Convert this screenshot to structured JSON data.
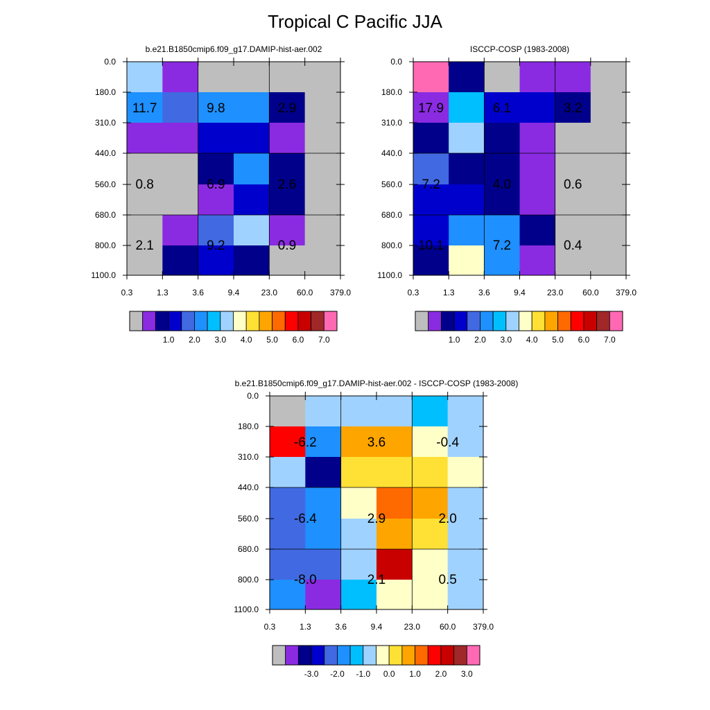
{
  "title": "Tropical C Pacific JJA",
  "colors": {
    "missing": "#BEBEBE",
    "cmap": [
      "#8A2BE2",
      "#00008B",
      "#0000CD",
      "#4169E1",
      "#1E90FF",
      "#00BFFF",
      "#A0D2FF",
      "#FFFFC8",
      "#FFE135",
      "#FFA500",
      "#FF6A00",
      "#FF0000",
      "#C80000",
      "#A02828",
      "#FF69B4"
    ]
  },
  "chart_data": [
    {
      "type": "heatmap",
      "id": "model",
      "title": "b.e21.B1850cmip6.f09_g17.DAMIP-hist-aer.002",
      "x_ticks": [
        "0.3",
        "1.3",
        "3.6",
        "9.4",
        "23.0",
        "60.0",
        "379.0"
      ],
      "y_ticks": [
        "0.0",
        "180.0",
        "310.0",
        "440.0",
        "560.0",
        "680.0",
        "800.0",
        "1100.0"
      ],
      "grid": true,
      "cells": [
        [
          "#A0D2FF",
          "#8A2BE2",
          "missing",
          "missing",
          "missing",
          "missing"
        ],
        [
          "#1E90FF",
          "#4169E1",
          "#1E90FF",
          "#1E90FF",
          "#00008B",
          "missing"
        ],
        [
          "#8A2BE2",
          "#8A2BE2",
          "#0000CD",
          "#0000CD",
          "#8A2BE2",
          "missing"
        ],
        [
          "missing",
          "missing",
          "#00008B",
          "#1E90FF",
          "#00008B",
          "missing"
        ],
        [
          "missing",
          "missing",
          "#8A2BE2",
          "#0000CD",
          "#00008B",
          "missing"
        ],
        [
          "missing",
          "#8A2BE2",
          "#4169E1",
          "#A0D2FF",
          "#8A2BE2",
          "missing"
        ],
        [
          "missing",
          "#00008B",
          "#0000CD",
          "#00008B",
          "missing",
          "missing"
        ]
      ],
      "annotations": [
        {
          "col": 0.5,
          "row": 1.5,
          "text": "11.7"
        },
        {
          "col": 2.5,
          "row": 1.5,
          "text": "9.8"
        },
        {
          "col": 4.5,
          "row": 1.5,
          "text": "2.9"
        },
        {
          "col": 0.5,
          "row": 4.0,
          "text": "0.8"
        },
        {
          "col": 2.5,
          "row": 4.0,
          "text": "6.9"
        },
        {
          "col": 4.5,
          "row": 4.0,
          "text": "2.6"
        },
        {
          "col": 0.5,
          "row": 6.0,
          "text": "2.1"
        },
        {
          "col": 2.5,
          "row": 6.0,
          "text": "9.2"
        },
        {
          "col": 4.5,
          "row": 6.0,
          "text": "0.9"
        }
      ],
      "colorbar_labels": [
        "1.0",
        "2.0",
        "3.0",
        "4.0",
        "5.0",
        "6.0",
        "7.0"
      ]
    },
    {
      "type": "heatmap",
      "id": "obs",
      "title": "ISCCP-COSP (1983-2008)",
      "x_ticks": [
        "0.3",
        "1.3",
        "3.6",
        "9.4",
        "23.0",
        "60.0",
        "379.0"
      ],
      "y_ticks": [
        "0.0",
        "180.0",
        "310.0",
        "440.0",
        "560.0",
        "680.0",
        "800.0",
        "1100.0"
      ],
      "grid": true,
      "cells": [
        [
          "#FF69B4",
          "#00008B",
          "missing",
          "#8A2BE2",
          "#8A2BE2",
          "missing"
        ],
        [
          "#8A2BE2",
          "#00BFFF",
          "#0000CD",
          "#0000CD",
          "#00008B",
          "missing"
        ],
        [
          "#00008B",
          "#A0D2FF",
          "#00008B",
          "#8A2BE2",
          "missing",
          "missing"
        ],
        [
          "#4169E1",
          "#00008B",
          "#00008B",
          "#8A2BE2",
          "missing",
          "missing"
        ],
        [
          "#0000CD",
          "#0000CD",
          "#00008B",
          "#8A2BE2",
          "missing",
          "missing"
        ],
        [
          "#0000CD",
          "#1E90FF",
          "#1E90FF",
          "#00008B",
          "missing",
          "missing"
        ],
        [
          "#00008B",
          "#FFFFC8",
          "#1E90FF",
          "#8A2BE2",
          "missing",
          "missing"
        ]
      ],
      "annotations": [
        {
          "col": 0.5,
          "row": 1.5,
          "text": "17.9"
        },
        {
          "col": 2.5,
          "row": 1.5,
          "text": "6.1"
        },
        {
          "col": 4.5,
          "row": 1.5,
          "text": "3.2"
        },
        {
          "col": 0.5,
          "row": 4.0,
          "text": "7.2"
        },
        {
          "col": 2.5,
          "row": 4.0,
          "text": "4.0"
        },
        {
          "col": 4.5,
          "row": 4.0,
          "text": "0.6"
        },
        {
          "col": 0.5,
          "row": 6.0,
          "text": "10.1"
        },
        {
          "col": 2.5,
          "row": 6.0,
          "text": "7.2"
        },
        {
          "col": 4.5,
          "row": 6.0,
          "text": "0.4"
        }
      ],
      "colorbar_labels": [
        "1.0",
        "2.0",
        "3.0",
        "4.0",
        "5.0",
        "6.0",
        "7.0"
      ]
    },
    {
      "type": "heatmap",
      "id": "diff",
      "title": "b.e21.B1850cmip6.f09_g17.DAMIP-hist-aer.002 - ISCCP-COSP (1983-2008)",
      "x_ticks": [
        "0.3",
        "1.3",
        "3.6",
        "9.4",
        "23.0",
        "60.0",
        "379.0"
      ],
      "y_ticks": [
        "0.0",
        "180.0",
        "310.0",
        "440.0",
        "560.0",
        "680.0",
        "800.0",
        "1100.0"
      ],
      "grid": true,
      "cells": [
        [
          "missing",
          "#A0D2FF",
          "#A0D2FF",
          "#A0D2FF",
          "#00BFFF",
          "#A0D2FF"
        ],
        [
          "#FF0000",
          "#1E90FF",
          "#FFA500",
          "#FFA500",
          "#FFFFC8",
          "#A0D2FF"
        ],
        [
          "#A0D2FF",
          "#00008B",
          "#FFE135",
          "#FFE135",
          "#FFE135",
          "#FFFFC8"
        ],
        [
          "#4169E1",
          "#1E90FF",
          "#FFFFC8",
          "#FF6A00",
          "#FFA500",
          "#A0D2FF"
        ],
        [
          "#4169E1",
          "#1E90FF",
          "#A0D2FF",
          "#FFA500",
          "#FFE135",
          "#A0D2FF"
        ],
        [
          "#4169E1",
          "#4169E1",
          "#A0D2FF",
          "#C80000",
          "#FFFFC8",
          "#A0D2FF"
        ],
        [
          "#1E90FF",
          "#8A2BE2",
          "#00BFFF",
          "#FFFFC8",
          "#FFFFC8",
          "#A0D2FF"
        ]
      ],
      "annotations": [
        {
          "col": 1.0,
          "row": 1.5,
          "text": "-6.2"
        },
        {
          "col": 3.0,
          "row": 1.5,
          "text": "3.6"
        },
        {
          "col": 5.0,
          "row": 1.5,
          "text": "-0.4"
        },
        {
          "col": 1.0,
          "row": 4.0,
          "text": "-6.4"
        },
        {
          "col": 3.0,
          "row": 4.0,
          "text": "2.9"
        },
        {
          "col": 5.0,
          "row": 4.0,
          "text": "2.0"
        },
        {
          "col": 1.0,
          "row": 6.0,
          "text": "-8.0"
        },
        {
          "col": 3.0,
          "row": 6.0,
          "text": "2.1"
        },
        {
          "col": 5.0,
          "row": 6.0,
          "text": "0.5"
        }
      ],
      "colorbar_labels": [
        "-3.0",
        "-2.0",
        "-1.0",
        "0.0",
        "1.0",
        "2.0",
        "3.0"
      ]
    }
  ]
}
